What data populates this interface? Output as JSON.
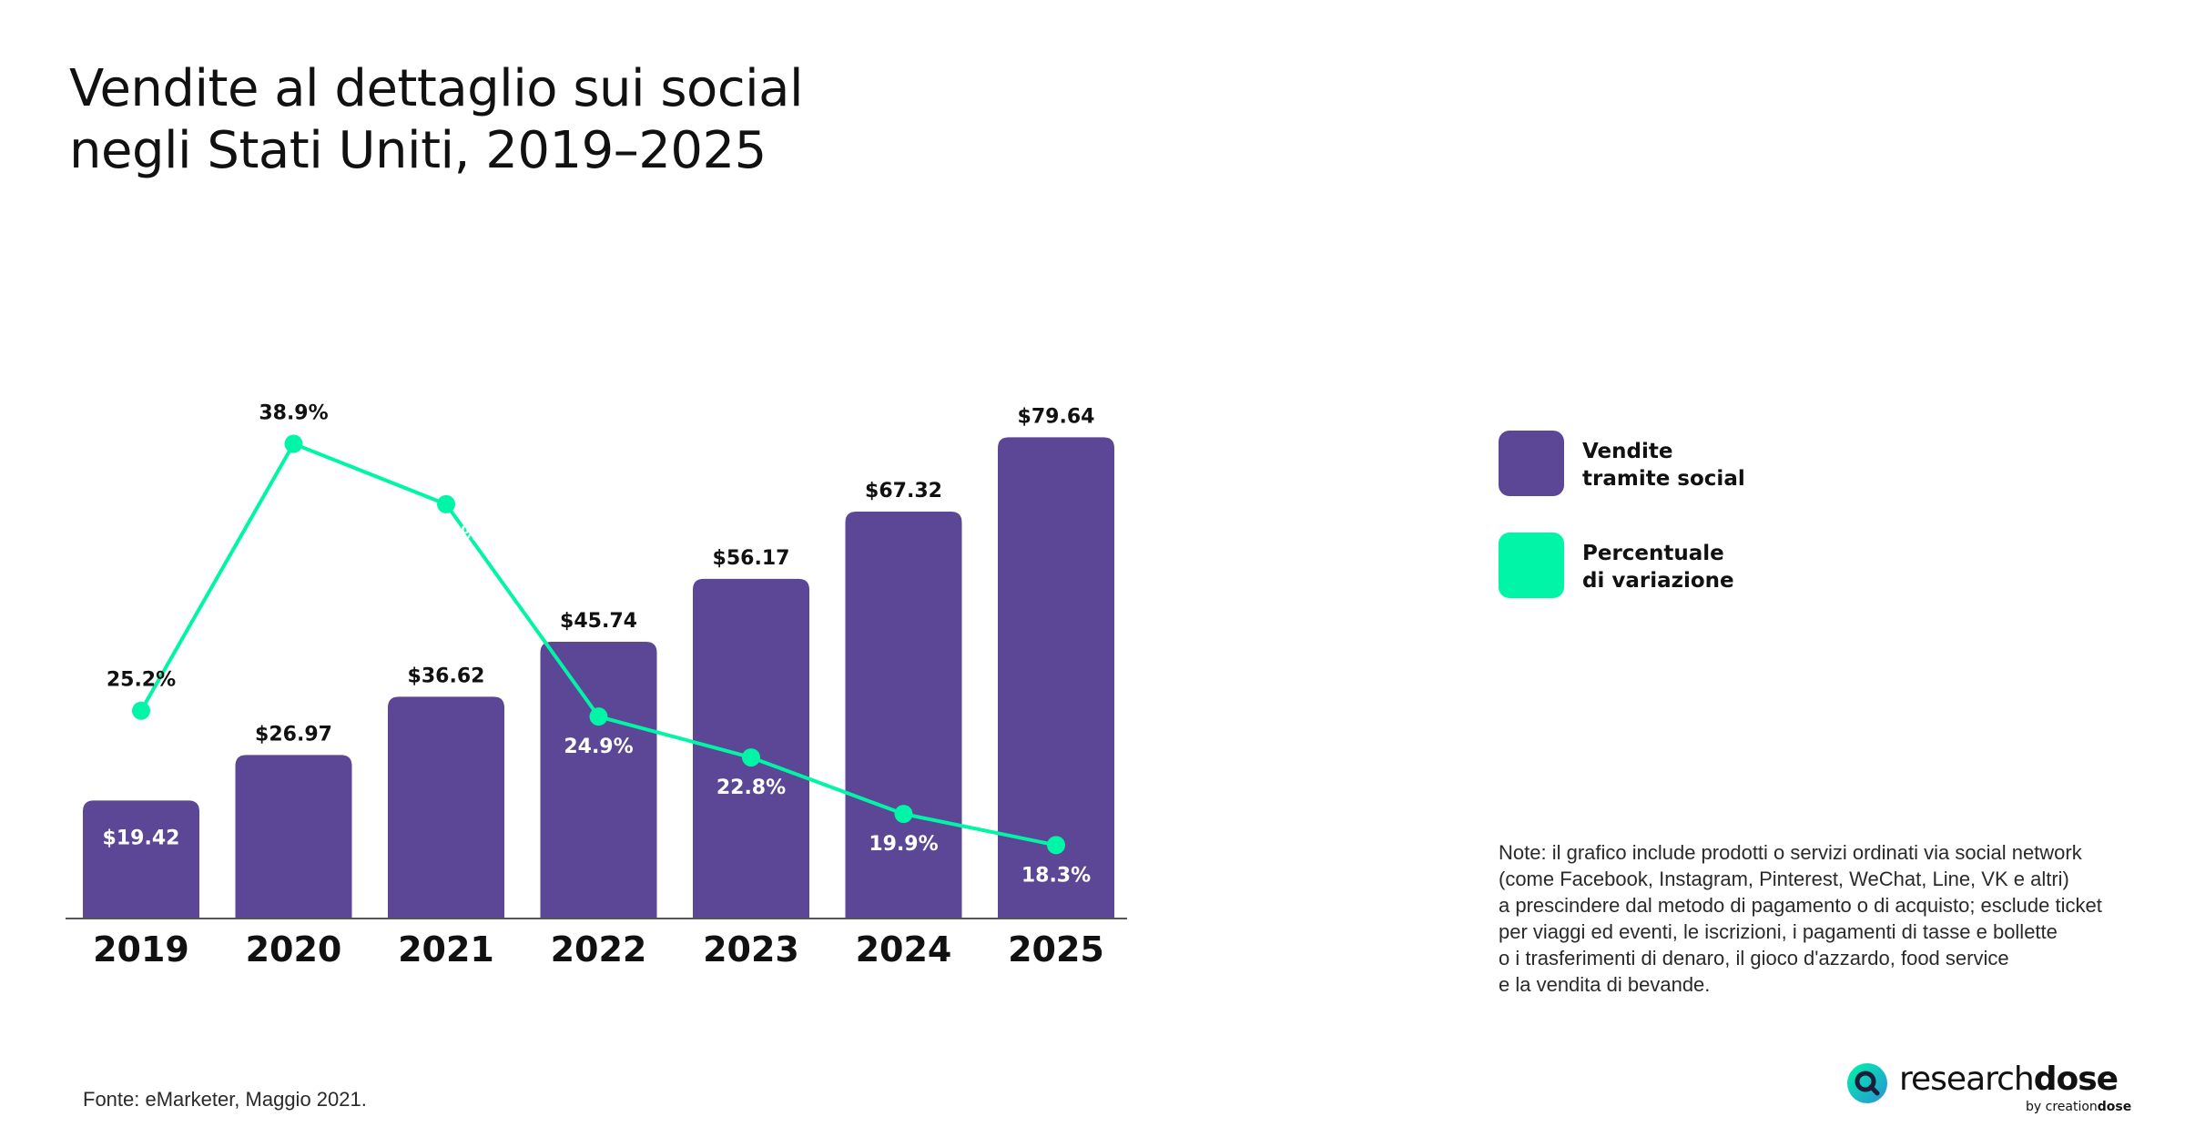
{
  "title": {
    "line1": "Vendite al dettaglio sui social",
    "line2": "negli Stati Uniti, 2019–2025"
  },
  "colors": {
    "bar": "#5b4795",
    "line": "#00f5a6",
    "axis": "#555555",
    "text": "#111111"
  },
  "chart_data": {
    "type": "bar",
    "categories": [
      "2019",
      "2020",
      "2021",
      "2022",
      "2023",
      "2024",
      "2025"
    ],
    "series": [
      {
        "name": "Vendite tramite social",
        "type": "bar",
        "values": [
          19.42,
          26.97,
          36.62,
          45.74,
          56.17,
          67.32,
          79.64
        ],
        "labels": [
          "$19.42",
          "$26.97",
          "$36.62",
          "$45.74",
          "$56.17",
          "$67.32",
          "$79.64"
        ]
      },
      {
        "name": "Percentuale di variazione",
        "type": "line",
        "values": [
          25.2,
          38.9,
          35.8,
          24.9,
          22.8,
          19.9,
          18.3
        ],
        "labels": [
          "25.2%",
          "38.9%",
          "35.8%",
          "24.9%",
          "22.8%",
          "19.9%",
          "18.3%"
        ]
      }
    ],
    "title": "Vendite al dettaglio sui social negli Stati Uniti, 2019–2025",
    "ylim": [
      0,
      80
    ],
    "grid": false,
    "legend": "right"
  },
  "legend": [
    {
      "line1": "Vendite",
      "line2": "tramite social",
      "color": "#5b4795"
    },
    {
      "line1": "Percentuale",
      "line2": "di variazione",
      "color": "#00f5a6"
    }
  ],
  "note": [
    "Note: il grafico include prodotti o servizi ordinati via social network",
    "(come Facebook, Instagram, Pinterest, WeChat, Line, VK e altri)",
    "a prescindere dal metodo di pagamento o di acquisto; esclude ticket",
    "per viaggi ed eventi, le iscrizioni, i pagamenti di tasse e bollette",
    "o i trasferimenti di denaro, il gioco d'azzardo, food service",
    "e la vendita di bevande."
  ],
  "source": "Fonte: eMarketer, Maggio 2021.",
  "brand": {
    "name_light": "research",
    "name_bold": "dose",
    "sub_light": "by creation",
    "sub_bold": "dose",
    "icon": "magnifier-logo-icon"
  }
}
